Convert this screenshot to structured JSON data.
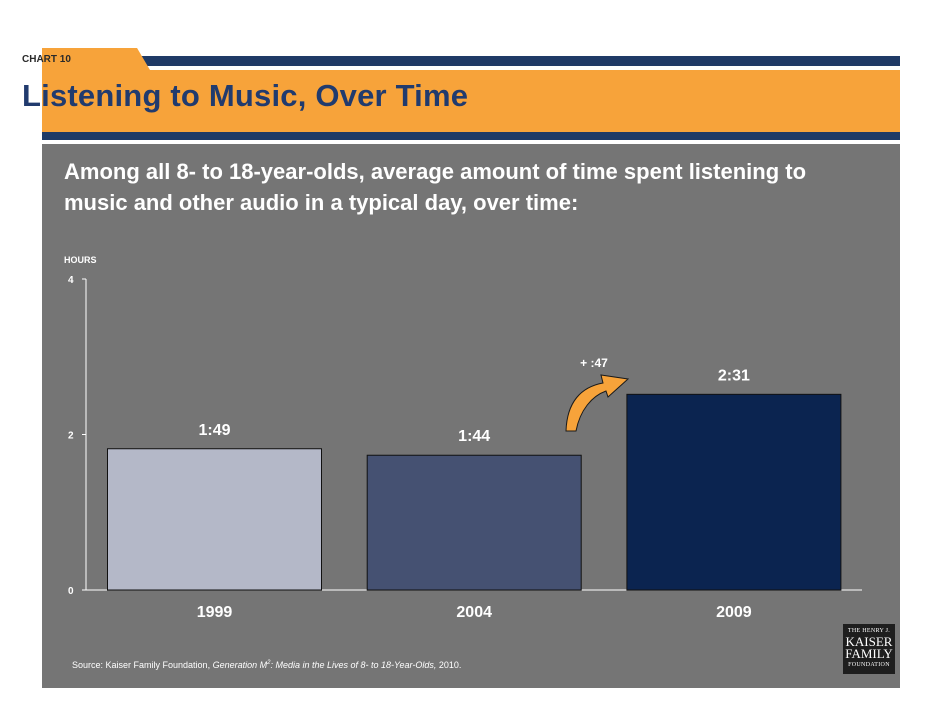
{
  "header": {
    "chart_number": "CHART 10",
    "title": "Listening to Music, Over Time"
  },
  "subtitle": "Among all 8- to 18-year-olds, average amount of time spent listening to music and other audio in a typical day, over time:",
  "unit_label": "HOURS",
  "source": {
    "prefix": "Source: Kaiser Family Foundation, ",
    "title_main": "Generation M",
    "title_sup": "2",
    "title_rest": ": Media in the Lives of 8- to 18-Year-Olds,",
    "suffix": " 2010."
  },
  "logo": {
    "line1": "THE HENRY J.",
    "line2": "KAISER",
    "line3": "FAMILY",
    "line4": "FOUNDATION"
  },
  "colors": {
    "bar_1999": "#b4b8c8",
    "bar_2004": "#455172",
    "bar_2009": "#0b2450",
    "accent_orange": "#f7a33a",
    "navy": "#213b6e",
    "panel": "#757575"
  },
  "chart_data": {
    "type": "bar",
    "categories": [
      "1999",
      "2004",
      "2009"
    ],
    "values": [
      1.8167,
      1.7333,
      2.5167
    ],
    "value_labels": [
      "1:49",
      "1:44",
      "2:31"
    ],
    "ylim": [
      0,
      4
    ],
    "yticks": [
      "0",
      "2",
      "4"
    ],
    "ylabel": "HOURS",
    "grid": false,
    "annotation": {
      "text": "+ :47",
      "arrow": "curved-arrow-up-right",
      "between": [
        "2004",
        "2009"
      ]
    }
  }
}
